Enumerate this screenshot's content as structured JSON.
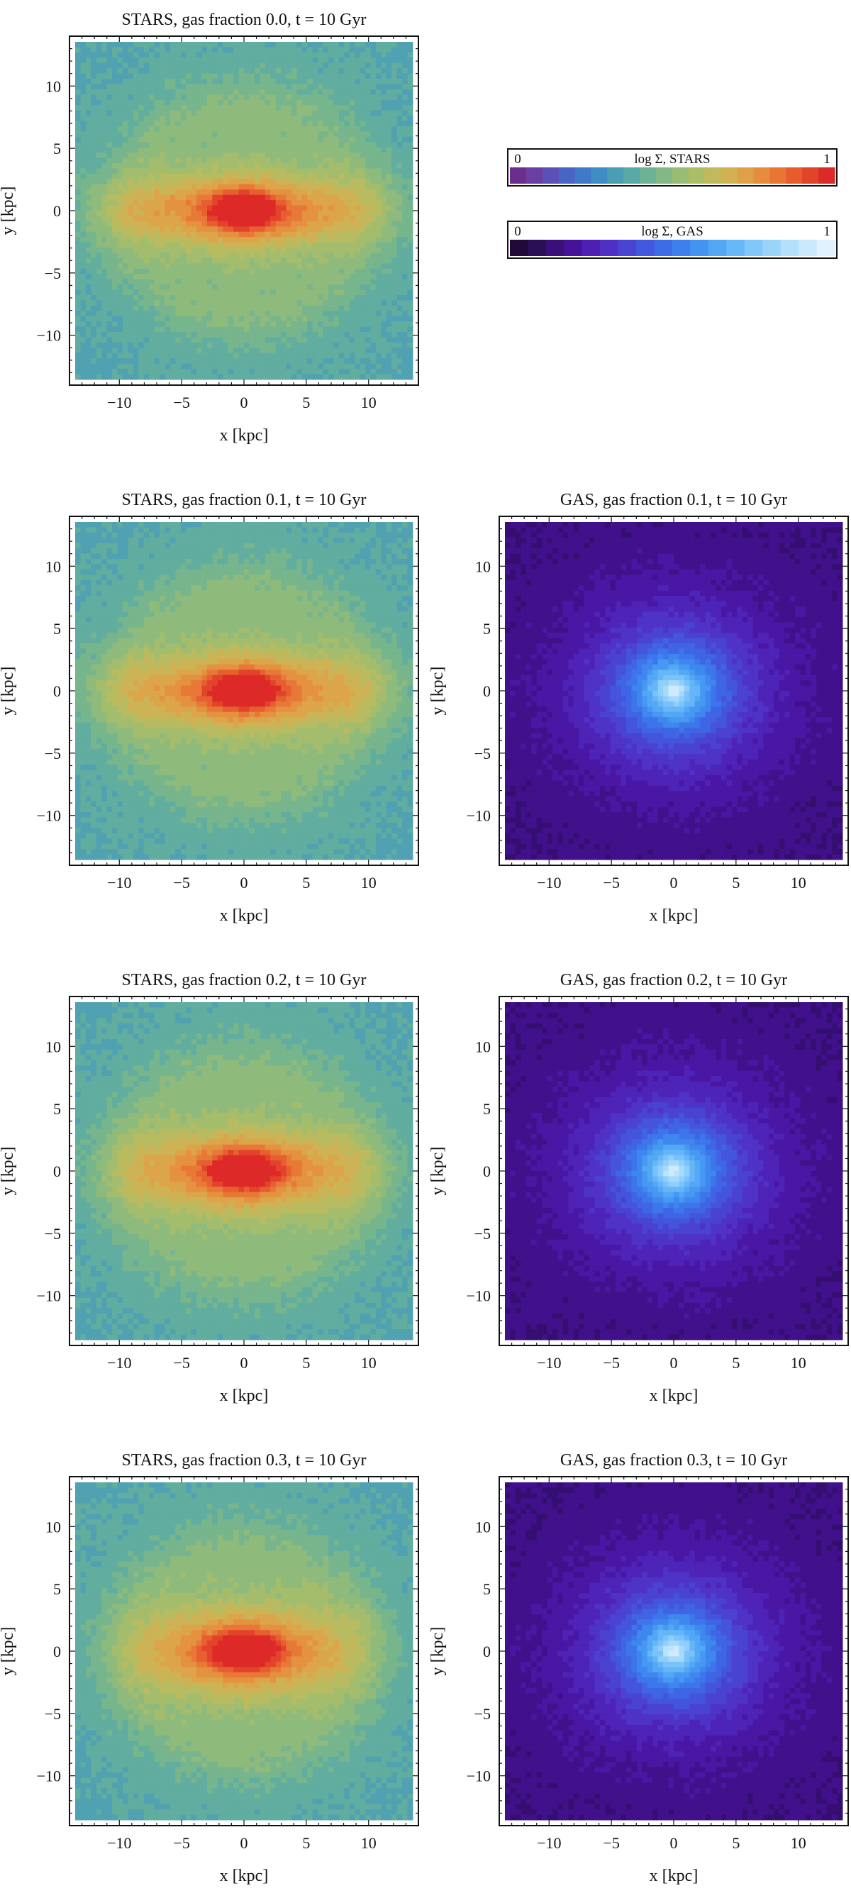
{
  "figure": {
    "panel_titles": [
      "STARS, gas fraction 0.0, t = 10 Gyr",
      "STARS, gas fraction 0.1, t = 10 Gyr",
      "GAS, gas fraction 0.1, t = 10 Gyr",
      "STARS, gas fraction 0.2, t = 10 Gyr",
      "GAS, gas fraction 0.2, t = 10 Gyr",
      "STARS, gas fraction 0.3, t = 10 Gyr",
      "GAS, gas fraction 0.3, t = 10 Gyr"
    ]
  },
  "colorbars": [
    {
      "label": "log Σ, STARS",
      "min_label": "0",
      "max_label": "1",
      "colors": [
        "#6c2e8d",
        "#6a3ea3",
        "#5d4fb6",
        "#4a64c4",
        "#3f7ac8",
        "#3f8dc2",
        "#4b9db6",
        "#5aa9a6",
        "#6db294",
        "#83b884",
        "#98bc74",
        "#adbd67",
        "#c1ba5c",
        "#d3b051",
        "#dfa147",
        "#e58c3e",
        "#e87436",
        "#e75b2f",
        "#e3422b",
        "#dd2a28"
      ]
    },
    {
      "label": "log Σ, GAS",
      "min_label": "0",
      "max_label": "1",
      "colors": [
        "#1f0a3a",
        "#2a0f57",
        "#3a0f7a",
        "#46129a",
        "#4e1fb3",
        "#4f30c4",
        "#4a44d3",
        "#4358de",
        "#3d6ce7",
        "#3c80ee",
        "#4394f2",
        "#52a7f5",
        "#67b8f8",
        "#80c7fa",
        "#9ad4fb",
        "#b4e0fc",
        "#cbe9fd",
        "#e0f2fe"
      ]
    }
  ],
  "chart_data": [
    {
      "type": "heatmap",
      "title": "STARS, gas fraction 0.0, t = 10 Gyr",
      "component": "STARS",
      "gas_fraction": 0.0,
      "time": "10 Gyr",
      "xlabel": "x [kpc]",
      "ylabel": "y [kpc]",
      "xlim": [
        -14,
        14
      ],
      "ylim": [
        -14,
        14
      ],
      "xticks": [
        -10,
        -5,
        0,
        5,
        10
      ],
      "yticks": [
        -10,
        -5,
        0,
        5,
        10
      ],
      "colorbar": "log Σ, STARS",
      "value_range": [
        0,
        1
      ],
      "peak": {
        "x": 0,
        "y": 0,
        "value": 1.0
      },
      "bar": {
        "half_length": 11.5,
        "half_width": 2.8
      }
    },
    {
      "type": "heatmap",
      "title": "STARS, gas fraction 0.1, t = 10 Gyr",
      "component": "STARS",
      "gas_fraction": 0.1,
      "time": "10 Gyr",
      "xlabel": "x [kpc]",
      "ylabel": "y [kpc]",
      "xlim": [
        -14,
        14
      ],
      "ylim": [
        -14,
        14
      ],
      "xticks": [
        -10,
        -5,
        0,
        5,
        10
      ],
      "yticks": [
        -10,
        -5,
        0,
        5,
        10
      ],
      "colorbar": "log Σ, STARS",
      "value_range": [
        0,
        1
      ],
      "peak": {
        "x": 0,
        "y": 0,
        "value": 1.0
      },
      "bar": {
        "half_length": 11.5,
        "half_width": 3.0
      }
    },
    {
      "type": "heatmap",
      "title": "GAS, gas fraction 0.1, t = 10 Gyr",
      "component": "GAS",
      "gas_fraction": 0.1,
      "time": "10 Gyr",
      "xlabel": "x [kpc]",
      "ylabel": "y [kpc]",
      "xlim": [
        -14,
        14
      ],
      "ylim": [
        -14,
        14
      ],
      "xticks": [
        -10,
        -5,
        0,
        5,
        10
      ],
      "yticks": [
        -10,
        -5,
        0,
        5,
        10
      ],
      "colorbar": "log Σ, GAS",
      "value_range": [
        0,
        1
      ],
      "peak": {
        "x": 0,
        "y": 0,
        "value": 1.0
      }
    },
    {
      "type": "heatmap",
      "title": "STARS, gas fraction 0.2, t = 10 Gyr",
      "component": "STARS",
      "gas_fraction": 0.2,
      "time": "10 Gyr",
      "xlabel": "x [kpc]",
      "ylabel": "y [kpc]",
      "xlim": [
        -14,
        14
      ],
      "ylim": [
        -14,
        14
      ],
      "xticks": [
        -10,
        -5,
        0,
        5,
        10
      ],
      "yticks": [
        -10,
        -5,
        0,
        5,
        10
      ],
      "colorbar": "log Σ, STARS",
      "value_range": [
        0,
        1
      ],
      "peak": {
        "x": 0,
        "y": 0,
        "value": 1.0
      },
      "bar": {
        "half_length": 10.5,
        "half_width": 3.2
      }
    },
    {
      "type": "heatmap",
      "title": "GAS, gas fraction 0.2, t = 10 Gyr",
      "component": "GAS",
      "gas_fraction": 0.2,
      "time": "10 Gyr",
      "xlabel": "x [kpc]",
      "ylabel": "y [kpc]",
      "xlim": [
        -14,
        14
      ],
      "ylim": [
        -14,
        14
      ],
      "xticks": [
        -10,
        -5,
        0,
        5,
        10
      ],
      "yticks": [
        -10,
        -5,
        0,
        5,
        10
      ],
      "colorbar": "log Σ, GAS",
      "value_range": [
        0,
        1
      ],
      "peak": {
        "x": 0,
        "y": 0,
        "value": 1.0
      }
    },
    {
      "type": "heatmap",
      "title": "STARS, gas fraction 0.3, t = 10 Gyr",
      "component": "STARS",
      "gas_fraction": 0.3,
      "time": "10 Gyr",
      "xlabel": "x [kpc]",
      "ylabel": "y [kpc]",
      "xlim": [
        -14,
        14
      ],
      "ylim": [
        -14,
        14
      ],
      "xticks": [
        -10,
        -5,
        0,
        5,
        10
      ],
      "yticks": [
        -10,
        -5,
        0,
        5,
        10
      ],
      "colorbar": "log Σ, STARS",
      "value_range": [
        0,
        1
      ],
      "peak": {
        "x": 0,
        "y": 0,
        "value": 1.0
      },
      "bar": {
        "half_length": 9.5,
        "half_width": 3.5
      }
    },
    {
      "type": "heatmap",
      "title": "GAS, gas fraction 0.3, t = 10 Gyr",
      "component": "GAS",
      "gas_fraction": 0.3,
      "time": "10 Gyr",
      "xlabel": "x [kpc]",
      "ylabel": "y [kpc]",
      "xlim": [
        -14,
        14
      ],
      "ylim": [
        -14,
        14
      ],
      "xticks": [
        -10,
        -5,
        0,
        5,
        10
      ],
      "yticks": [
        -10,
        -5,
        0,
        5,
        10
      ],
      "colorbar": "log Σ, GAS",
      "value_range": [
        0,
        1
      ],
      "peak": {
        "x": 0,
        "y": 0,
        "value": 1.0
      }
    }
  ]
}
